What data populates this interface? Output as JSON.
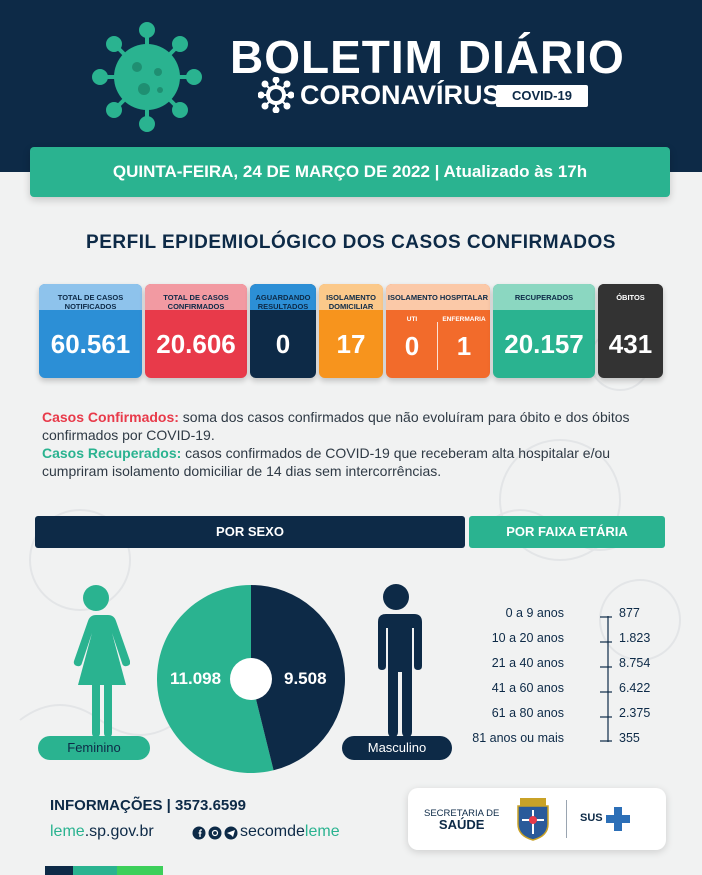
{
  "header": {
    "title": "BOLETIM DIÁRIO",
    "subtitle": "CORONAVÍRUS",
    "tag": "COVID-19"
  },
  "date_bar": "QUINTA-FEIRA, 24 DE MARÇO DE 2022 | Atualizado às 17h",
  "section_title": "PERFIL EPIDEMIOLÓGICO DOS CASOS CONFIRMADOS",
  "stats": {
    "notificados": {
      "label": "TOTAL DE CASOS NOTIFICADOS",
      "value": "60.561"
    },
    "confirmados": {
      "label": "TOTAL DE CASOS CONFIRMADOS",
      "value": "20.606"
    },
    "aguardando": {
      "label": "AGUARDANDO RESULTADOS",
      "value": "0"
    },
    "domiciliar": {
      "label": "ISOLAMENTO DOMICILIAR",
      "value": "17"
    },
    "hospitalar": {
      "label": "ISOLAMENTO HOSPITALAR",
      "uti_label": "UTI",
      "uti_value": "0",
      "enfermaria_label": "ENFERMARIA",
      "enfermaria_value": "1"
    },
    "recuperados": {
      "label": "RECUPERADOS",
      "value": "20.157"
    },
    "obitos": {
      "label": "ÓBITOS",
      "value": "431"
    }
  },
  "description": {
    "confirmed_key": "Casos Confirmados:",
    "confirmed_text": " soma dos casos confirmados que não evoluíram para óbito e dos óbitos confirmados por COVID-19.",
    "recovered_key": "Casos Recuperados:",
    "recovered_text": " casos confirmados de COVID-19 que receberam alta hospitalar e/ou cumpriram isolamento domiciliar de 14 dias sem intercorrências."
  },
  "tabs": {
    "sex": "POR SEXO",
    "age": "POR FAIXA ETÁRIA"
  },
  "sex": {
    "female_label": "Feminino",
    "female_value": "11.098",
    "male_label": "Masculino",
    "male_value": "9.508"
  },
  "age": [
    {
      "label": "0 a 9 anos",
      "value": "877"
    },
    {
      "label": "10 a 20 anos",
      "value": "1.823"
    },
    {
      "label": "21 a 40 anos",
      "value": "8.754"
    },
    {
      "label": "41 a 60 anos",
      "value": "6.422"
    },
    {
      "label": "61 a 80 anos",
      "value": "2.375"
    },
    {
      "label": "81 anos ou mais",
      "value": "355"
    }
  ],
  "footer": {
    "info": "INFORMAÇÕES | 3573.6599",
    "site_a": "leme",
    "site_b": ".sp.gov.br",
    "handle_a": "secomde",
    "handle_b": "leme",
    "sec_line1": "SECRETARIA DE",
    "sec_line2": "SAÚDE",
    "sus": "SUS"
  },
  "colors": {
    "navy": "#0d2a47",
    "green": "#2ab390",
    "blue": "#2c8fd6",
    "red": "#e83a4a",
    "orange": "#f7941d",
    "orange_dark": "#f26b2b",
    "dark": "#333333"
  }
}
